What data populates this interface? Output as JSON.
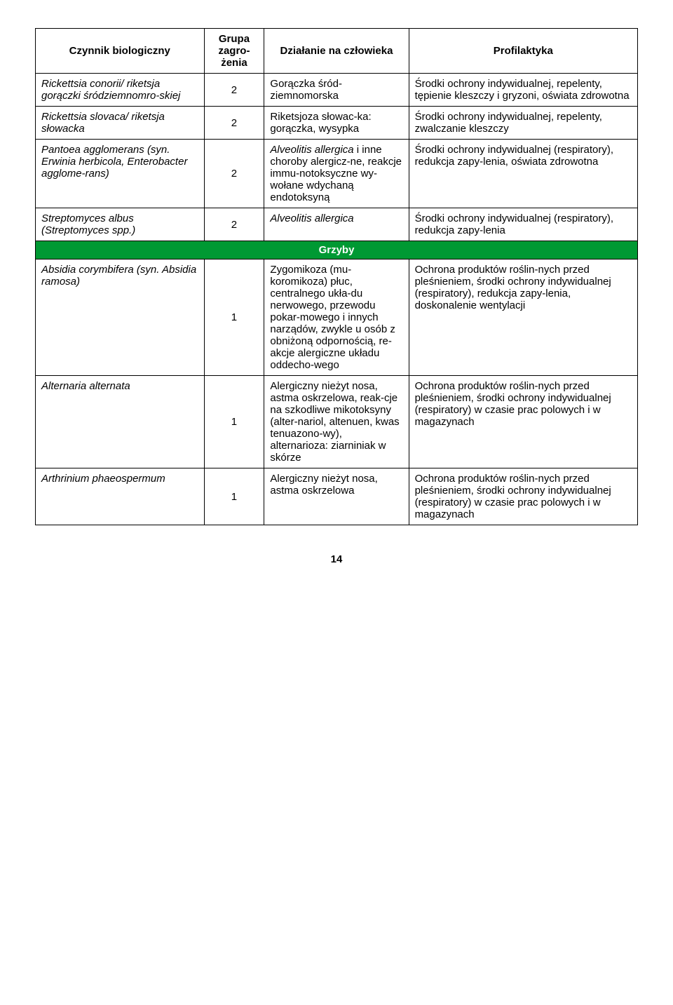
{
  "headers": {
    "agent": "Czynnik biologiczny",
    "group": "Grupa zagro-żenia",
    "action": "Działanie na człowieka",
    "prophylaxis": "Profilaktyka"
  },
  "section_label": "Grzyby",
  "rows": [
    {
      "agent": "Rickettsia conorii/ riketsja gorączki śródziemnomro-skiej",
      "agent_italic": true,
      "group": "2",
      "action": "Gorączka śród-ziemnomorska",
      "prophylaxis": "Środki ochrony indywidualnej, repelenty, tępienie kleszczy i gryzoni, oświata zdrowotna"
    },
    {
      "agent": "Rickettsia slovaca/ riketsja słowacka",
      "agent_italic": true,
      "group": "2",
      "action": "Riketsjoza słowac-ka: gorączka, wysypka",
      "prophylaxis": "Środki ochrony indywidualnej, repelenty, zwalczanie kleszczy"
    },
    {
      "agent": "Pantoea agglomerans (syn. Erwinia herbicola, Enterobacter agglome-rans)",
      "agent_italic": true,
      "group": "2",
      "action_html": "<span class=\"italic\">Alveolitis allergica</span> i inne choroby alergicz-ne, reakcje immu-notoksyczne wy-wołane wdychaną endotoksyną",
      "prophylaxis": "Środki ochrony indywidualnej (respiratory), redukcja zapy-lenia, oświata zdrowotna"
    },
    {
      "agent": "Streptomyces albus (Streptomyces spp.)",
      "agent_italic": true,
      "group": "2",
      "action": "Alveolitis allergica",
      "action_italic": true,
      "prophylaxis": "Środki ochrony indywidualnej (respiratory), redukcja zapy-lenia"
    }
  ],
  "rows2": [
    {
      "agent": "Absidia corymbifera (syn. Absidia ramosa)",
      "agent_italic": true,
      "group": "1",
      "action": "Zygomikoza (mu-koromikoza) płuc, centralnego ukła-du nerwowego, przewodu pokar-mowego i innych narządów, zwykle u osób z obniżoną odpornością, re-akcje alergiczne układu oddecho-wego",
      "prophylaxis": "Ochrona produktów roślin-nych przed pleśnieniem, środki ochrony indywidualnej (respiratory), redukcja zapy-lenia, doskonalenie wentylacji"
    },
    {
      "agent": "Alternaria alternata",
      "agent_italic": true,
      "group": "1",
      "action": "Alergiczny nieżyt nosa, astma oskrzelowa, reak-cje na szkodliwe mikotoksyny (alter-nariol, altenuen, kwas tenuazono-wy), alternarioza: ziarniniak w skórze",
      "prophylaxis": "Ochrona produktów roślin-nych przed pleśnieniem, środki ochrony indywidualnej (respiratory) w czasie prac polowych i w magazynach"
    },
    {
      "agent": "Arthrinium phaeospermum",
      "agent_italic": true,
      "group": "1",
      "action": "Alergiczny nieżyt nosa, astma oskrzelowa",
      "prophylaxis": "Ochrona produktów roślin-nych przed pleśnieniem, środki ochrony indywidualnej (respiratory) w czasie prac polowych i w magazynach"
    }
  ],
  "page_number": "14",
  "colors": {
    "section_bg": "#009933",
    "section_text": "#ffffff",
    "border": "#000000"
  }
}
